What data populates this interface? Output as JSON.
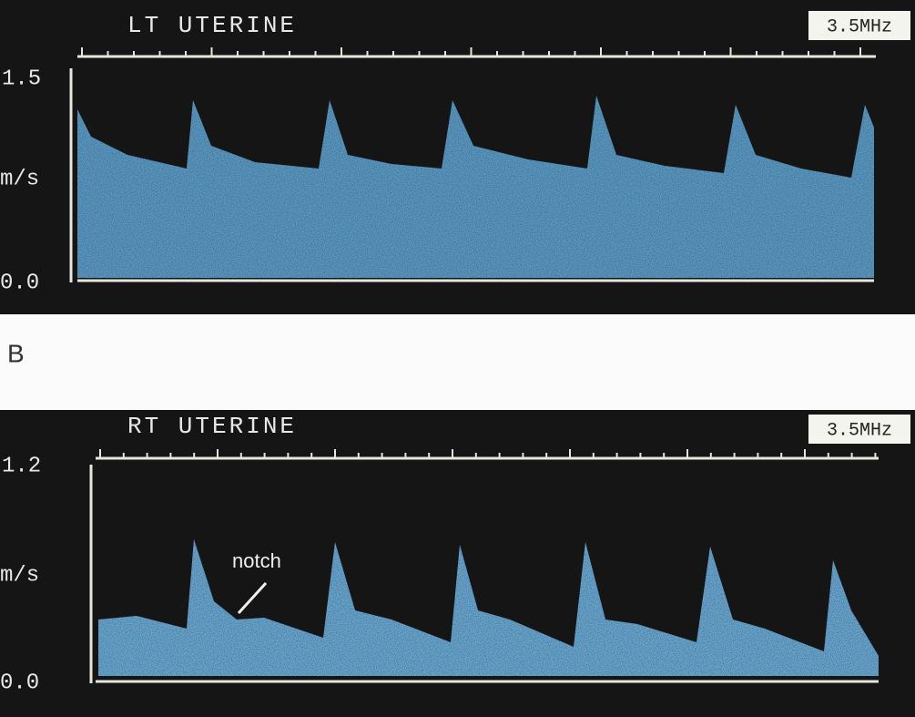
{
  "panel_a": {
    "title": "LT UTERINE",
    "frequency": "3.5MHz",
    "y_max": "1.5",
    "y_unit": "m/s",
    "y_min": "0.0"
  },
  "panel_b_label": "B",
  "panel_b": {
    "title": "RT UTERINE",
    "frequency": "3.5MHz",
    "y_max": "1.2",
    "y_unit": "m/s",
    "y_min": "0.0",
    "annotation": "notch"
  }
}
